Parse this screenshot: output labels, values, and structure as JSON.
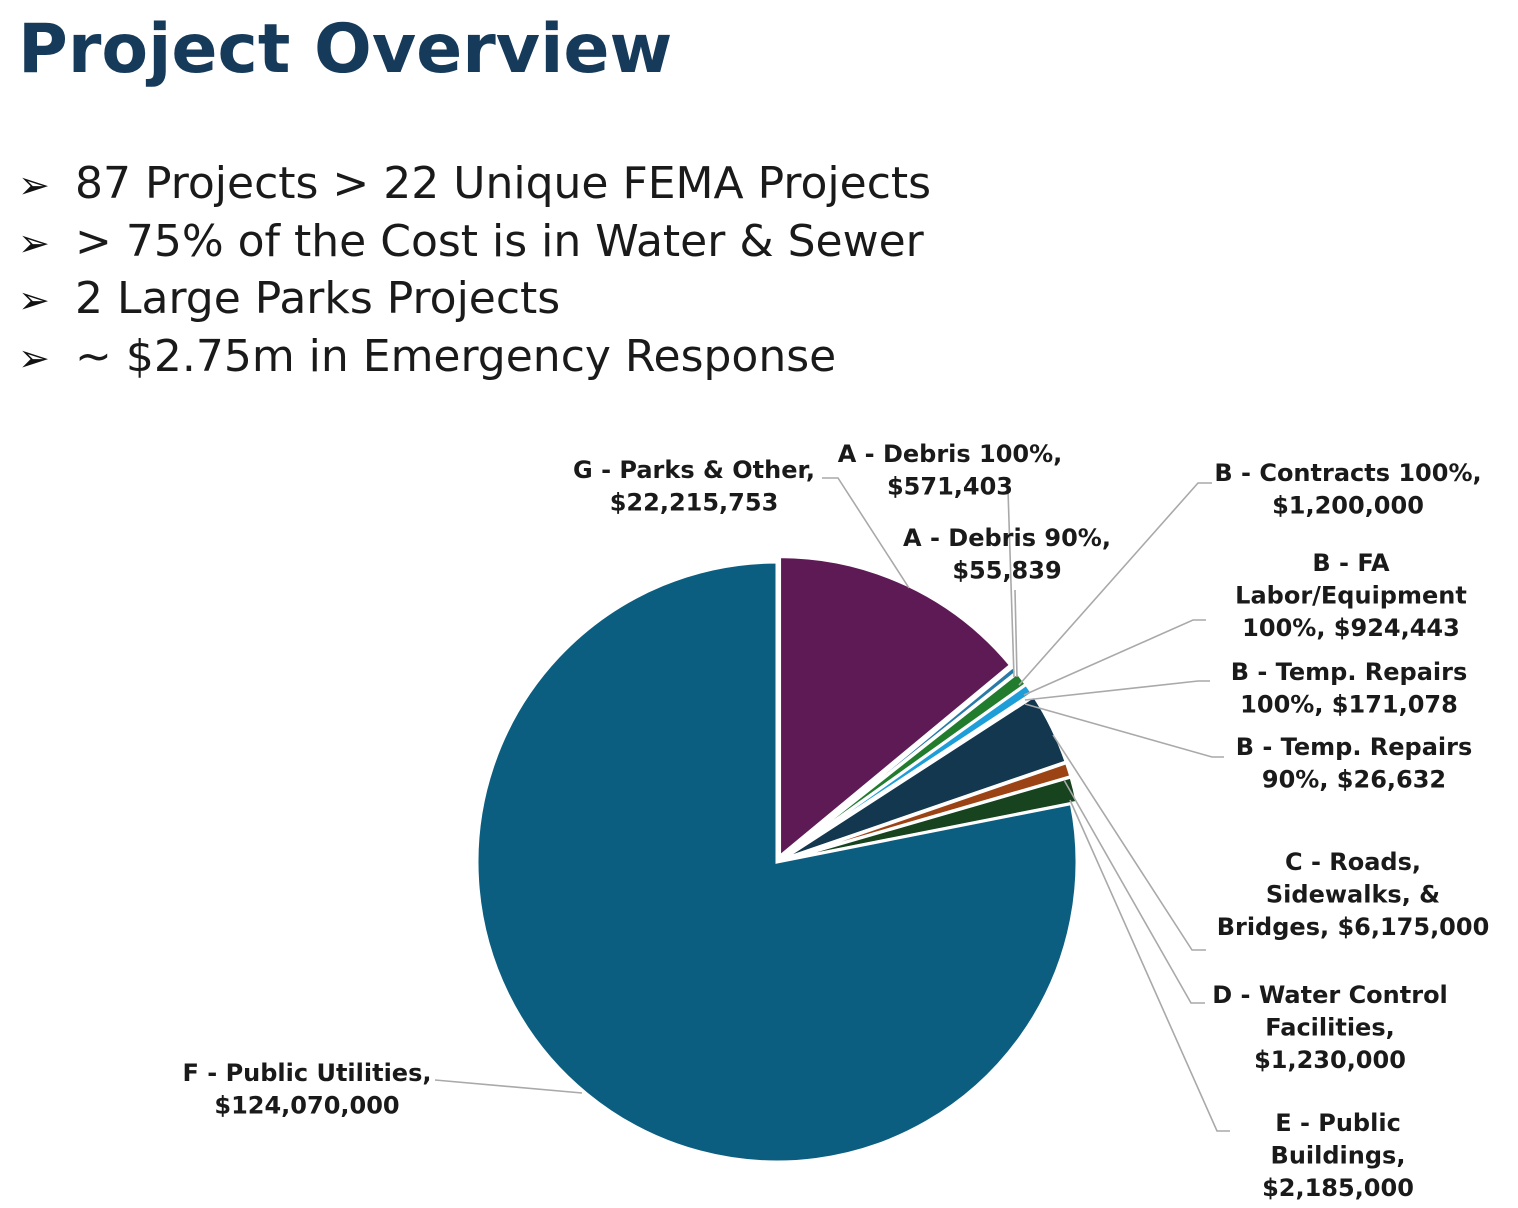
{
  "title": "Project Overview",
  "bullets": [
    {
      "icon": "arrowhead-bullet-icon",
      "glyph": "➢",
      "text": "87 Projects > 22 Unique FEMA Projects"
    },
    {
      "icon": "arrowhead-bullet-icon",
      "glyph": "➢",
      "text": "> 75% of the Cost is in Water & Sewer"
    },
    {
      "icon": "arrowhead-bullet-icon",
      "glyph": "➢",
      "text": "2 Large Parks Projects"
    },
    {
      "icon": "arrowhead-bullet-icon",
      "glyph": "➢",
      "text": "~ $2.75m in Emergency Response"
    }
  ],
  "chart_data": {
    "type": "pie",
    "title": "",
    "legend": "none",
    "slices": [
      {
        "name": "A - Debris 100%",
        "value": 571403,
        "color": "#2a7aa8",
        "label": [
          "A - Debris 100%,",
          "$571,403"
        ]
      },
      {
        "name": "A - Debris 90%",
        "value": 55839,
        "color": "#8fb3c9",
        "label": [
          "A - Debris 90%,",
          "$55,839"
        ]
      },
      {
        "name": "B - Contracts 100%",
        "value": 1200000,
        "color": "#217c2e",
        "label": [
          "B - Contracts 100%,",
          "$1,200,000"
        ]
      },
      {
        "name": "B - FA Labor/Equipment 100%",
        "value": 924443,
        "color": "#1e9ed8",
        "label": [
          "B - FA",
          "Labor/Equipment",
          "100%,  $924,443"
        ]
      },
      {
        "name": "B - Temp. Repairs 100%",
        "value": 171078,
        "color": "#6b6b6b",
        "label": [
          "B - Temp. Repairs",
          "100%,  $171,078"
        ]
      },
      {
        "name": "B - Temp. Repairs 90%",
        "value": 26632,
        "color": "#b0b0b0",
        "label": [
          "B - Temp. Repairs",
          "90%,  $26,632"
        ]
      },
      {
        "name": "C - Roads, Sidewalks, & Bridges",
        "value": 6175000,
        "color": "#12374f",
        "label": [
          "C - Roads,",
          "Sidewalks, &",
          "Bridges,  $6,175,000"
        ]
      },
      {
        "name": "D - Water Control Facilities",
        "value": 1230000,
        "color": "#9c4316",
        "label": [
          "D - Water Control",
          "Facilities,",
          "$1,230,000"
        ]
      },
      {
        "name": "E - Public Buildings",
        "value": 2185000,
        "color": "#17431f",
        "label": [
          "E - Public",
          "Buildings,",
          "$2,185,000"
        ]
      },
      {
        "name": "F - Public Utilities",
        "value": 124070000,
        "color": "#0b5e80",
        "label": [
          "F - Public  Utilities,",
          "$124,070,000"
        ]
      },
      {
        "name": "G - Parks & Other",
        "value": 22215753,
        "color": "#5e1a55",
        "label": [
          "G - Parks & Other,",
          "$22,215,753"
        ]
      }
    ]
  }
}
